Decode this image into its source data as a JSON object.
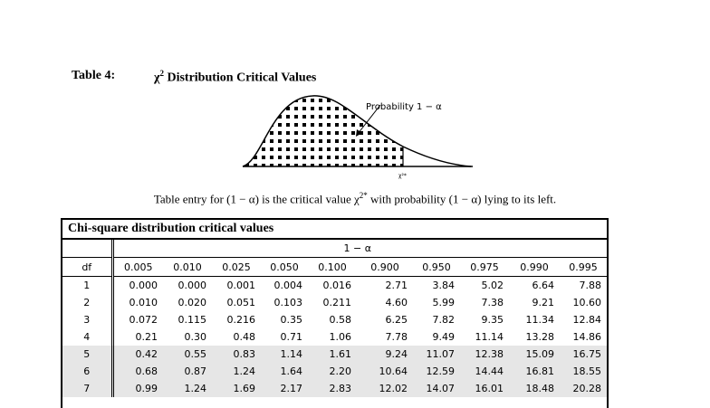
{
  "header": {
    "label": "Table 4:",
    "title_symbol": "χ",
    "title_sup": "2",
    "title_text": " Distribution Critical Values"
  },
  "figure": {
    "probability_label": "Probability  1 − α",
    "critical_label": "χ²*"
  },
  "caption": {
    "before": "Table entry for (1 − α) is the critical value χ",
    "sup": "2*",
    "after": "  with probability (1 − α) lying to its left."
  },
  "table": {
    "title": "Chi-square distribution critical values",
    "group_header": "1 − α",
    "df_header": "df",
    "columns": [
      "0.005",
      "0.010",
      "0.025",
      "0.050",
      "0.100",
      "0.900",
      "0.950",
      "0.975",
      "0.990",
      "0.995"
    ],
    "shade_color": "#e6e6e6",
    "rows": [
      {
        "df": "1",
        "values": [
          "0.000",
          "0.000",
          "0.001",
          "0.004",
          "0.016",
          "2.71",
          "3.84",
          "5.02",
          "6.64",
          "7.88"
        ]
      },
      {
        "df": "2",
        "values": [
          "0.010",
          "0.020",
          "0.051",
          "0.103",
          "0.211",
          "4.60",
          "5.99",
          "7.38",
          "9.21",
          "10.60"
        ]
      },
      {
        "df": "3",
        "values": [
          "0.072",
          "0.115",
          "0.216",
          "0.35",
          "0.58",
          "6.25",
          "7.82",
          "9.35",
          "11.34",
          "12.84"
        ]
      },
      {
        "df": "4",
        "values": [
          "0.21",
          "0.30",
          "0.48",
          "0.71",
          "1.06",
          "7.78",
          "9.49",
          "11.14",
          "13.28",
          "14.86"
        ]
      },
      {
        "df": "5",
        "values": [
          "0.42",
          "0.55",
          "0.83",
          "1.14",
          "1.61",
          "9.24",
          "11.07",
          "12.38",
          "15.09",
          "16.75"
        ],
        "shaded": true
      },
      {
        "df": "6",
        "values": [
          "0.68",
          "0.87",
          "1.24",
          "1.64",
          "2.20",
          "10.64",
          "12.59",
          "14.44",
          "16.81",
          "18.55"
        ],
        "shaded": true
      },
      {
        "df": "7",
        "values": [
          "0.99",
          "1.24",
          "1.69",
          "2.17",
          "2.83",
          "12.02",
          "14.07",
          "16.01",
          "18.48",
          "20.28"
        ],
        "shaded": true
      }
    ]
  }
}
